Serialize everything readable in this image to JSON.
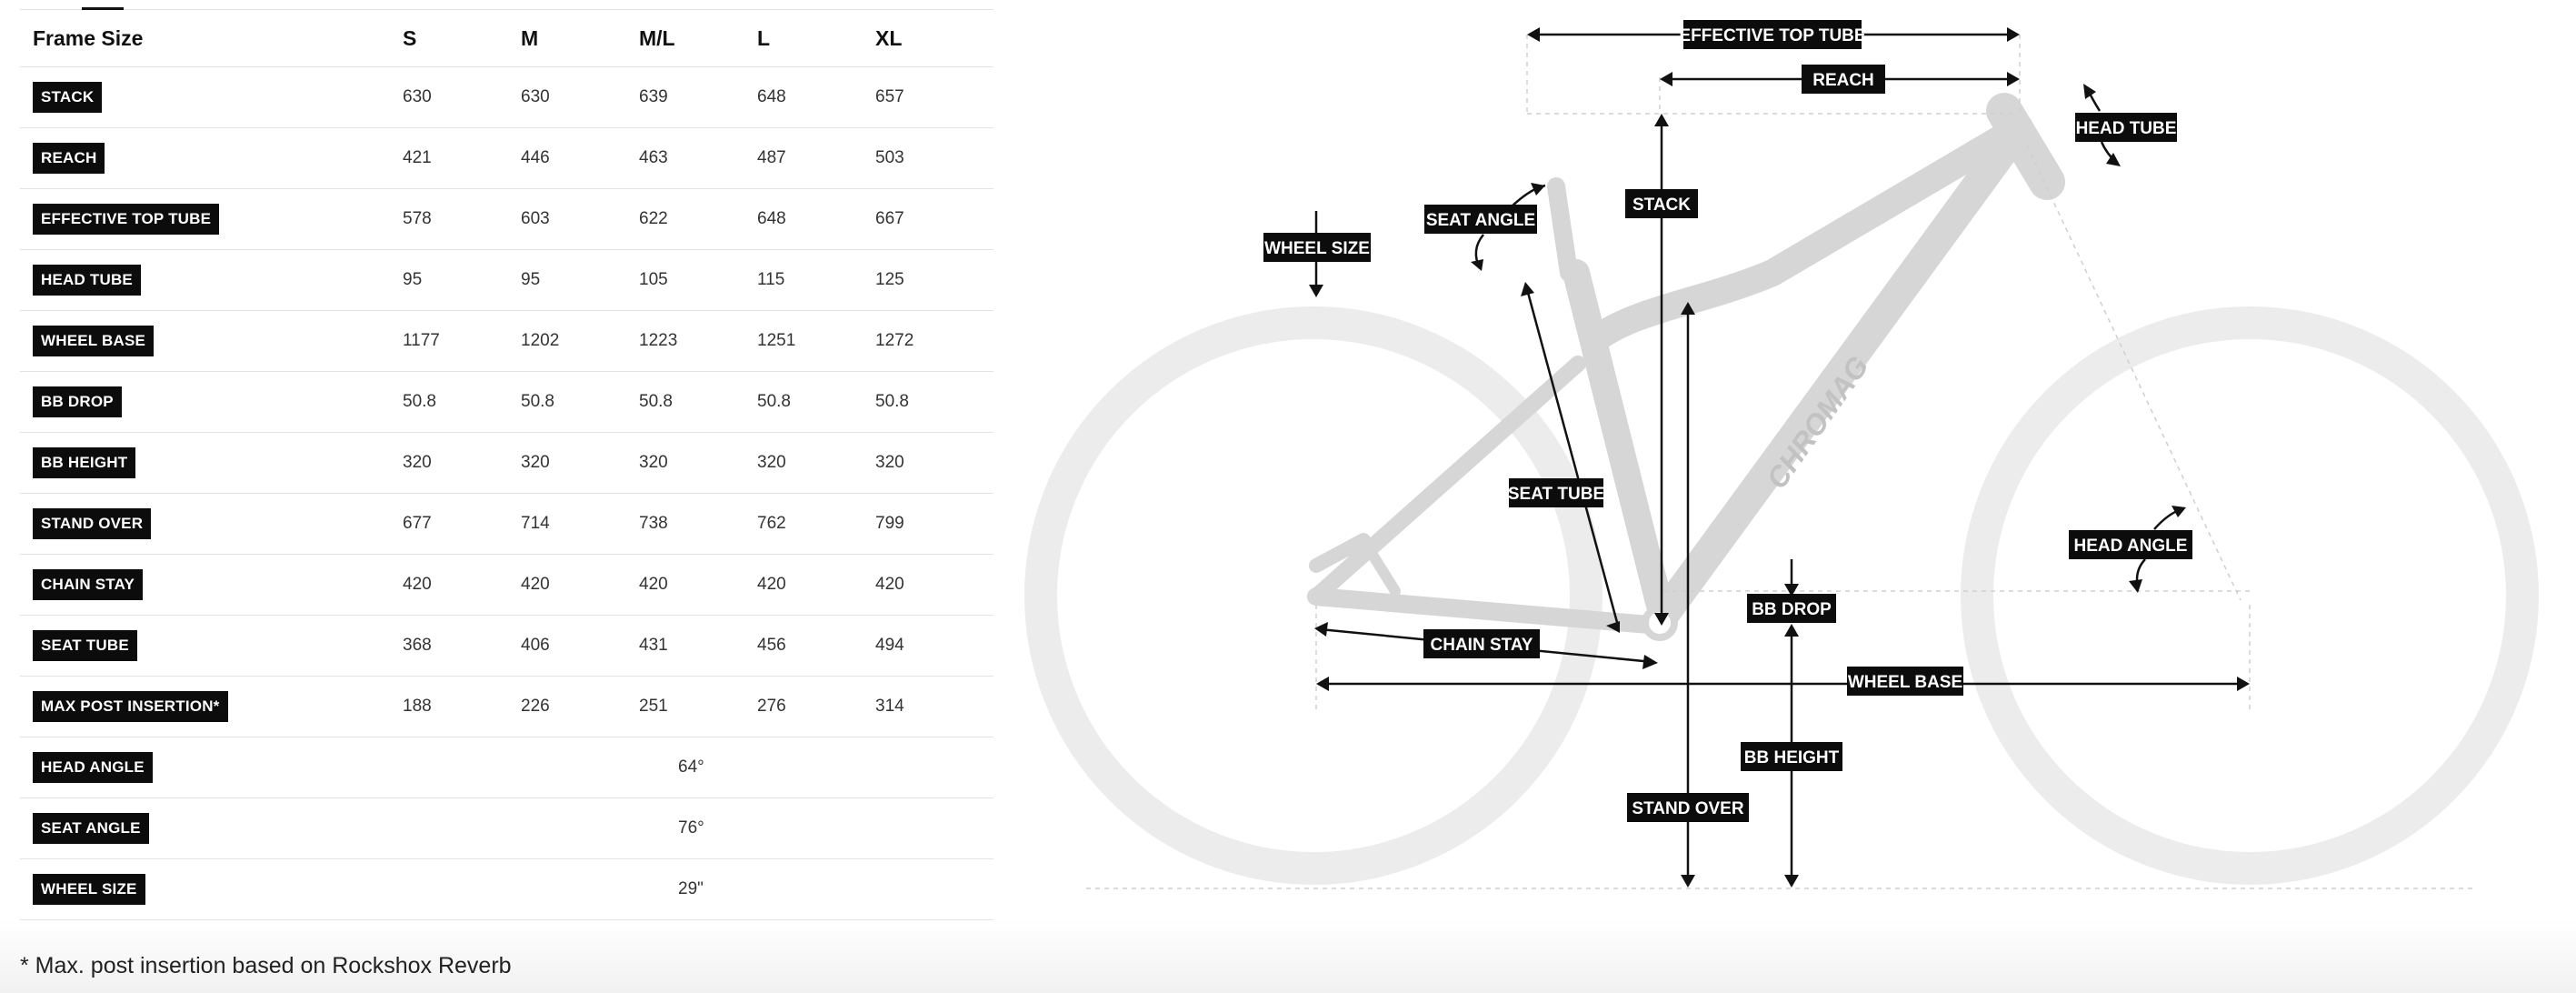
{
  "table": {
    "header": {
      "label": "Frame Size",
      "sizes": [
        "S",
        "M",
        "M/L",
        "L",
        "XL"
      ]
    },
    "rows": [
      {
        "label": "STACK",
        "values": [
          "630",
          "630",
          "639",
          "648",
          "657"
        ]
      },
      {
        "label": "REACH",
        "values": [
          "421",
          "446",
          "463",
          "487",
          "503"
        ]
      },
      {
        "label": "EFFECTIVE TOP TUBE",
        "values": [
          "578",
          "603",
          "622",
          "648",
          "667"
        ]
      },
      {
        "label": "HEAD TUBE",
        "values": [
          "95",
          "95",
          "105",
          "115",
          "125"
        ]
      },
      {
        "label": "WHEEL BASE",
        "values": [
          "1177",
          "1202",
          "1223",
          "1251",
          "1272"
        ]
      },
      {
        "label": "BB DROP",
        "values": [
          "50.8",
          "50.8",
          "50.8",
          "50.8",
          "50.8"
        ]
      },
      {
        "label": "BB HEIGHT",
        "values": [
          "320",
          "320",
          "320",
          "320",
          "320"
        ]
      },
      {
        "label": "STAND OVER",
        "values": [
          "677",
          "714",
          "738",
          "762",
          "799"
        ]
      },
      {
        "label": "CHAIN STAY",
        "values": [
          "420",
          "420",
          "420",
          "420",
          "420"
        ]
      },
      {
        "label": "SEAT TUBE",
        "values": [
          "368",
          "406",
          "431",
          "456",
          "494"
        ]
      },
      {
        "label": "MAX POST INSERTION*",
        "values": [
          "188",
          "226",
          "251",
          "276",
          "314"
        ]
      }
    ],
    "shared_rows": [
      {
        "label": "HEAD ANGLE",
        "value": "64°"
      },
      {
        "label": "SEAT ANGLE",
        "value": "76°"
      },
      {
        "label": "WHEEL SIZE",
        "value": "29\""
      }
    ]
  },
  "footnote": "* Max. post insertion based on Rockshox Reverb",
  "diagram": {
    "brand": "CHROMAG",
    "labels": {
      "effective_top_tube": "EFFECTIVE TOP TUBE",
      "reach": "REACH",
      "head_tube": "HEAD TUBE",
      "stack": "STACK",
      "seat_angle": "SEAT ANGLE",
      "wheel_size": "WHEEL SIZE",
      "seat_tube": "SEAT TUBE",
      "head_angle": "HEAD ANGLE",
      "bb_drop": "BB DROP",
      "chain_stay": "CHAIN STAY",
      "wheel_base": "WHEEL BASE",
      "bb_height": "BB HEIGHT",
      "stand_over": "STAND OVER"
    },
    "colors": {
      "frame": "#d6d6d6",
      "tire": "#ececec",
      "tag": "#0c0c0c"
    }
  }
}
